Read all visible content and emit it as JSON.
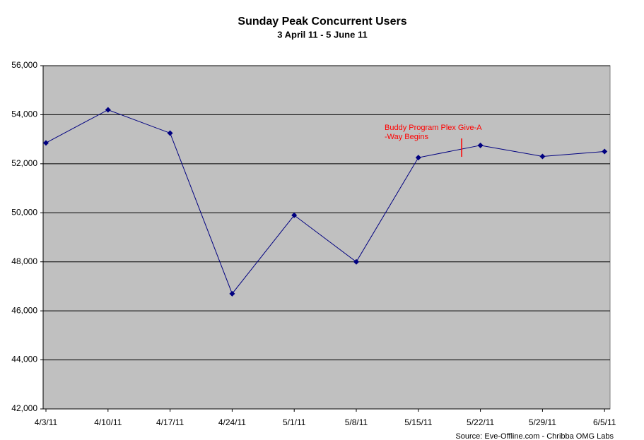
{
  "chart_data": {
    "type": "line",
    "title": "Sunday Peak Concurrent Users",
    "subtitle": "3 April 11 - 5 June 11",
    "categories": [
      "4/3/11",
      "4/10/11",
      "4/17/11",
      "4/24/11",
      "5/1/11",
      "5/8/11",
      "5/15/11",
      "5/22/11",
      "5/29/11",
      "6/5/11"
    ],
    "values": [
      52850,
      54200,
      53250,
      46700,
      49900,
      48000,
      52250,
      52750,
      52300,
      52500
    ],
    "color": "#000080",
    "ylim": [
      42000,
      56000
    ],
    "yticks": [
      {
        "value": 42000,
        "label": "42,000"
      },
      {
        "value": 44000,
        "label": "44,000"
      },
      {
        "value": 46000,
        "label": "46,000"
      },
      {
        "value": 48000,
        "label": "48,000"
      },
      {
        "value": 50000,
        "label": "50,000"
      },
      {
        "value": 52000,
        "label": "52,000"
      },
      {
        "value": 54000,
        "label": "54,000"
      },
      {
        "value": 56000,
        "label": "56,000"
      }
    ],
    "grid": true,
    "annotation": {
      "lines": [
        "Buddy Program Plex Give-A",
        "-Way Begins"
      ],
      "color": "#ff0000"
    },
    "source": "Source: Eve-Offline.com - Chribba OMG Labs"
  }
}
